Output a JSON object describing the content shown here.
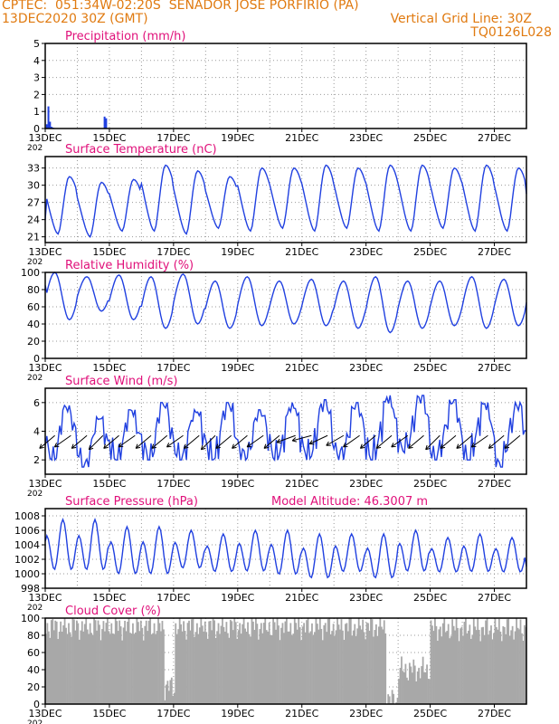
{
  "header": {
    "line1": "CPTEC:  051:34W-02:20S  SENADOR JOSE PORFIRIO (PA)",
    "line2_left": "13DEC2020 30Z (GMT)",
    "line2_right": "Vertical Grid Line: 30Z",
    "line3_right": "TQ0126L028"
  },
  "colors": {
    "header": "#e07a10",
    "title": "#e0107a",
    "series": "#2040e0",
    "cloud": "#a8a8a8",
    "grid": "#9a9a9a",
    "axis": "#000000"
  },
  "x_axis": {
    "tick_labels": [
      "13DEC",
      "15DEC",
      "17DEC",
      "19DEC",
      "21DEC",
      "23DEC",
      "25DEC",
      "27DEC"
    ],
    "tick_days": [
      13,
      15,
      17,
      19,
      21,
      23,
      25,
      27
    ],
    "year_fragment": "202",
    "range_days": [
      13,
      28
    ]
  },
  "chart_data": [
    {
      "id": "precip",
      "type": "bar",
      "title": "Precipitation (mm/h)",
      "ylim": [
        0,
        5
      ],
      "yticks": [
        0,
        1,
        2,
        3,
        4,
        5
      ],
      "grid": true,
      "x_days": [
        13.05,
        13.1,
        13.15,
        13.2,
        13.25,
        14.85,
        14.9
      ],
      "values": [
        0.25,
        1.3,
        0.4,
        0.1,
        0.05,
        0.7,
        0.6
      ]
    },
    {
      "id": "temp",
      "type": "line",
      "title": "Surface Temperature (nC)",
      "ylim": [
        20,
        35
      ],
      "yticks": [
        21,
        24,
        27,
        30,
        33
      ],
      "grid": true,
      "diurnal": {
        "min": [
          21.5,
          21.0,
          22.0,
          22.0,
          21.5,
          22.5,
          22.0,
          22.5,
          22.0,
          22.5,
          22.0,
          22.0,
          22.5,
          22.0,
          22.0
        ],
        "max": [
          31.5,
          30.5,
          31.0,
          33.5,
          32.5,
          31.5,
          33.0,
          33.0,
          33.5,
          33.0,
          33.5,
          33.5,
          33.0,
          33.5,
          33.0
        ],
        "start": 24.0,
        "end": 28.5,
        "shape": "temp"
      }
    },
    {
      "id": "rh",
      "type": "line",
      "title": "Relative Humidity (%)",
      "ylim": [
        0,
        100
      ],
      "yticks": [
        0,
        20,
        40,
        60,
        80,
        100
      ],
      "grid": true,
      "diurnal": {
        "min": [
          45,
          55,
          45,
          35,
          40,
          35,
          38,
          40,
          38,
          35,
          30,
          35,
          38,
          35,
          38
        ],
        "max": [
          100,
          95,
          97,
          95,
          98,
          90,
          95,
          90,
          92,
          90,
          95,
          90,
          90,
          95,
          92
        ],
        "start": 85,
        "end": 65,
        "shape": "rh"
      }
    },
    {
      "id": "wind",
      "type": "line",
      "title": "Surface Wind (m/s)",
      "ylim": [
        1,
        7
      ],
      "yticks": [
        2,
        4,
        6
      ],
      "grid": true,
      "diurnal": {
        "min": [
          2.0,
          1.5,
          2.0,
          2.0,
          2.0,
          2.0,
          2.0,
          2.0,
          2.0,
          2.0,
          2.0,
          2.5,
          2.0,
          2.0,
          1.5
        ],
        "max": [
          5.8,
          5.0,
          5.5,
          6.0,
          5.5,
          6.0,
          5.5,
          6.0,
          6.2,
          6.0,
          6.5,
          6.5,
          6.2,
          6.0,
          6.0
        ],
        "start": 3.0,
        "end": 4.0,
        "shape": "wind"
      },
      "arrows": {
        "x_days": [
          13.3,
          13.8,
          14.3,
          14.8,
          15.3,
          15.8,
          16.3,
          16.8,
          17.3,
          17.8,
          18.3,
          18.8,
          19.3,
          19.8,
          20.3,
          20.8,
          21.3,
          21.8,
          22.3,
          22.8,
          23.3,
          23.8,
          24.3,
          24.8,
          25.3,
          25.8,
          26.3,
          26.8,
          27.3,
          27.8
        ],
        "dir_deg": [
          40,
          35,
          40,
          45,
          40,
          35,
          40,
          40,
          35,
          40,
          45,
          40,
          40,
          35,
          40,
          20,
          15,
          25,
          30,
          35,
          40,
          40,
          35,
          40,
          45,
          40,
          40,
          35,
          40,
          40
        ]
      }
    },
    {
      "id": "pres",
      "type": "line",
      "title": "Surface Pressure (hPa)",
      "subtitle": "Model Altitude: 46.3007 m",
      "ylim": [
        998,
        1009
      ],
      "yticks": [
        998,
        1000,
        1002,
        1004,
        1006,
        1008
      ],
      "grid": true,
      "semidiurnal": {
        "hi": [
          1007.5,
          1007.5,
          1006.5,
          1006.5,
          1006.0,
          1005.5,
          1006.0,
          1006.0,
          1005.5,
          1005.5,
          1005.5,
          1006.0,
          1005.0,
          1005.5,
          1005.0
        ],
        "lo": [
          999.5,
          999.5,
          999.0,
          999.0,
          1000.0,
          999.5,
          999.5,
          999.0,
          998.5,
          999.5,
          998.5,
          999.5,
          999.5,
          999.5,
          999.5
        ],
        "start": 1004.5,
        "end": 1001.0
      }
    },
    {
      "id": "cloud",
      "type": "area",
      "title": "Cloud Cover (%)",
      "ylim": [
        0,
        100
      ],
      "yticks": [
        0,
        20,
        40,
        60,
        80,
        100
      ],
      "grid": true,
      "segments": [
        {
          "from": 13.0,
          "to": 16.7,
          "level": 90
        },
        {
          "from": 16.7,
          "to": 17.0,
          "level": 20
        },
        {
          "from": 17.0,
          "to": 23.6,
          "level": 90
        },
        {
          "from": 23.6,
          "to": 24.0,
          "level": 5
        },
        {
          "from": 24.0,
          "to": 25.0,
          "level": 40
        },
        {
          "from": 25.0,
          "to": 28.0,
          "level": 88
        }
      ]
    }
  ]
}
